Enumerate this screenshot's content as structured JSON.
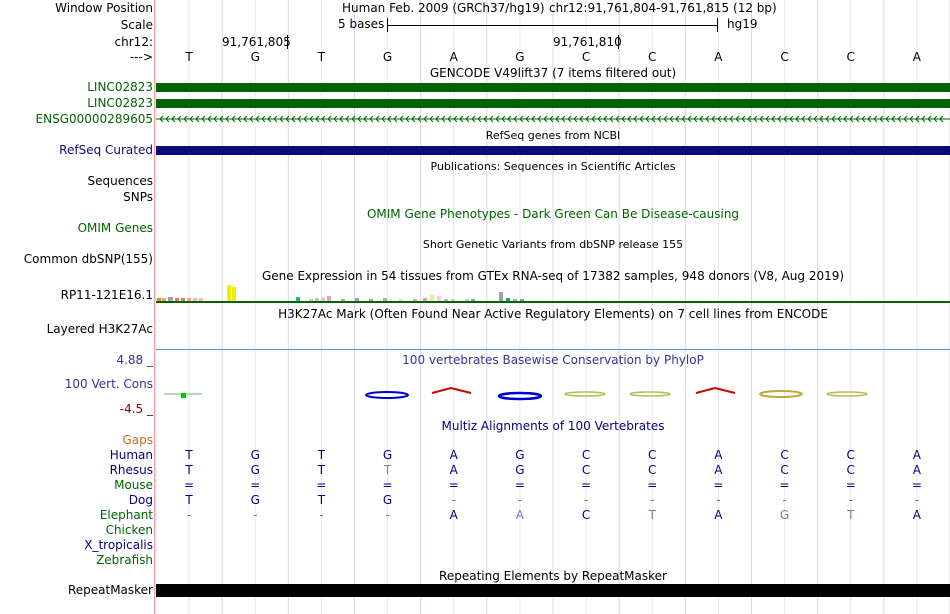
{
  "header": {
    "window_position_label": "Window Position",
    "scale_label": "Scale",
    "chrom_label": "chr12:",
    "strand_label": "--->",
    "assembly": "Human Feb. 2009 (GRCh37/hg19)",
    "position": "chr12:91,761,804-91,761,815 (12 bp)",
    "scale_text": "5 bases",
    "scale_assembly": "hg19",
    "coord_1": "91,761,805",
    "coord_2": "91,761,810"
  },
  "sequence": [
    "T",
    "G",
    "T",
    "G",
    "A",
    "G",
    "C",
    "C",
    "A",
    "C",
    "C",
    "A"
  ],
  "tracks": {
    "gencode_title": "GENCODE V49lift37 (7 items filtered out)",
    "gencode_items": [
      "LINC02823",
      "LINC02823",
      "ENSG00000289605"
    ],
    "refseq_title": "RefSeq genes from NCBI",
    "refseq_label": "RefSeq Curated",
    "publications_title": "Publications: Sequences in Scientific Articles",
    "sequences_label": "Sequences",
    "snps_label": "SNPs",
    "omim_title": "OMIM Gene Phenotypes - Dark Green Can Be Disease-causing",
    "omim_label": "OMIM Genes",
    "dbsnp_title": "Short Genetic Variants from dbSNP release 155",
    "dbsnp_label": "Common dbSNP(155)",
    "gtex_title": "Gene Expression in 54 tissues from GTEx RNA-seq of 17382 samples, 948 donors (V8, Aug 2019)",
    "gtex_label": "RP11-121E16.1",
    "h3k27_title": "H3K27Ac Mark (Often Found Near Active Regulatory Elements) on 7 cell lines from ENCODE",
    "h3k27_label": "Layered H3K27Ac",
    "cons_title": "100 vertebrates Basewise Conservation by PhyloP",
    "cons_label": "100 Vert. Cons",
    "cons_max": "4.88 _",
    "cons_min": "-4.5 _",
    "multiz_title": "Multiz Alignments of 100 Vertebrates",
    "gaps_label": "Gaps",
    "repeat_title": "Repeating Elements by RepeatMasker",
    "repeat_label": "RepeatMasker"
  },
  "alignment": [
    {
      "species": "Human",
      "color": "#000080",
      "bases": [
        "T",
        "G",
        "T",
        "G",
        "A",
        "G",
        "C",
        "C",
        "A",
        "C",
        "C",
        "A"
      ]
    },
    {
      "species": "Rhesus",
      "color": "#000080",
      "bases": [
        "T",
        "G",
        "T",
        "T",
        "A",
        "G",
        "C",
        "C",
        "A",
        "C",
        "C",
        "A"
      ]
    },
    {
      "species": "Mouse",
      "color": "#006400",
      "bases": [
        "=",
        "=",
        "=",
        "=",
        "=",
        "=",
        "=",
        "=",
        "=",
        "=",
        "=",
        "="
      ]
    },
    {
      "species": "Dog",
      "color": "#000080",
      "bases": [
        "T",
        "G",
        "T",
        "G",
        "-",
        "-",
        "-",
        "-",
        "-",
        "-",
        "-",
        "-"
      ]
    },
    {
      "species": "Elephant",
      "color": "#006400",
      "bases": [
        "-",
        "-",
        "-",
        "-",
        "A",
        "A",
        "C",
        "T",
        "A",
        "G",
        "T",
        "A"
      ]
    },
    {
      "species": "Chicken",
      "color": "#006400",
      "bases": [
        "",
        "",
        "",
        "",
        "",
        "",
        "",
        "",
        "",
        "",
        "",
        ""
      ]
    },
    {
      "species": "X_tropicalis",
      "color": "#000080",
      "bases": [
        "",
        "",
        "",
        "",
        "",
        "",
        "",
        "",
        "",
        "",
        "",
        ""
      ]
    },
    {
      "species": "Zebrafish",
      "color": "#006400",
      "bases": [
        "",
        "",
        "",
        "",
        "",
        "",
        "",
        "",
        "",
        "",
        "",
        ""
      ]
    }
  ],
  "colors": {
    "gencode": "#006400",
    "refseq": "#0c0c78",
    "repeat": "#000000",
    "cons_title": "#333399",
    "gaps_label": "#d2691e"
  }
}
